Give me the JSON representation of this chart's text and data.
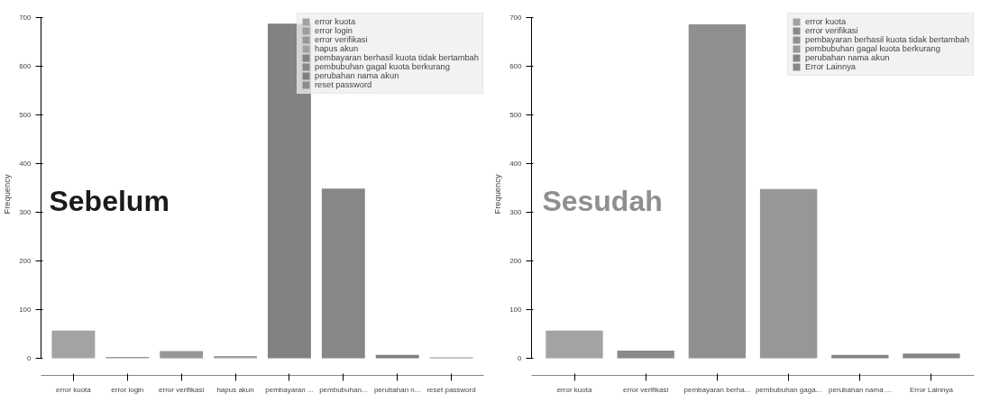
{
  "chart_data": [
    {
      "type": "bar",
      "title": "Sebelum",
      "ylabel": "Frequency",
      "categories": [
        "error kuota",
        "error login",
        "error verifikasi",
        "hapus akun",
        "pembayaran ...",
        "pembubuhan...",
        "perubahan n...",
        "reset password"
      ],
      "series": [
        {
          "name": "error kuota",
          "color": "#a3a3a3",
          "values": [
            57,
            null,
            null,
            null,
            null,
            null,
            null,
            null
          ]
        },
        {
          "name": "error login",
          "color": "#9c9c9c",
          "values": [
            null,
            3,
            null,
            null,
            null,
            null,
            null,
            null
          ]
        },
        {
          "name": "error verifikasi",
          "color": "#979797",
          "values": [
            null,
            null,
            15,
            null,
            null,
            null,
            null,
            null
          ]
        },
        {
          "name": "hapus akun",
          "color": "#a0a0a0",
          "values": [
            null,
            null,
            null,
            5,
            null,
            null,
            null,
            null
          ]
        },
        {
          "name": "pembayaran berhasil kuota tidak bertambah",
          "color": "#828282",
          "values": [
            null,
            null,
            null,
            null,
            688,
            null,
            null,
            null
          ]
        },
        {
          "name": "pembubuhan gagal kuota berkurang",
          "color": "#878787",
          "values": [
            null,
            null,
            null,
            null,
            null,
            349,
            null,
            null
          ]
        },
        {
          "name": "perubahan nama akun",
          "color": "#808080",
          "values": [
            null,
            null,
            null,
            null,
            null,
            null,
            7,
            null
          ]
        },
        {
          "name": "reset password",
          "color": "#8c8c8c",
          "values": [
            null,
            null,
            null,
            null,
            null,
            null,
            null,
            2
          ]
        }
      ],
      "ylim": [
        -35,
        710
      ],
      "yticks": [
        0,
        100,
        200,
        300,
        400,
        500,
        600,
        700
      ],
      "grid": false,
      "legend": "top right"
    },
    {
      "type": "bar",
      "title": "Sesudah",
      "ylabel": "Frequency",
      "categories": [
        "error kuota",
        "error verifikasi",
        "pembayaran berha...",
        "pembubuhan gaga...",
        "perubahan nama ...",
        "Error Lainnya"
      ],
      "series": [
        {
          "name": "error kuota",
          "color": "#a3a3a3",
          "values": [
            57,
            null,
            null,
            null,
            null,
            null
          ]
        },
        {
          "name": "error verifikasi",
          "color": "#8a8a8a",
          "values": [
            null,
            16,
            null,
            null,
            null,
            null
          ]
        },
        {
          "name": "pembayaran berhasil kuota tidak bertambah",
          "color": "#8f8f8f",
          "values": [
            null,
            null,
            687,
            null,
            null,
            null
          ]
        },
        {
          "name": "pembubuhan gagal kuota berkurang",
          "color": "#979797",
          "values": [
            null,
            null,
            null,
            348,
            null,
            null
          ]
        },
        {
          "name": "perubahan nama akun",
          "color": "#858585",
          "values": [
            null,
            null,
            null,
            null,
            7,
            null
          ]
        },
        {
          "name": "Error Lainnya",
          "color": "#878787",
          "values": [
            null,
            null,
            null,
            null,
            null,
            10
          ]
        }
      ],
      "ylim": [
        -35,
        710
      ],
      "yticks": [
        0,
        100,
        200,
        300,
        400,
        500,
        600,
        700
      ],
      "grid": false,
      "legend": "top right"
    }
  ]
}
